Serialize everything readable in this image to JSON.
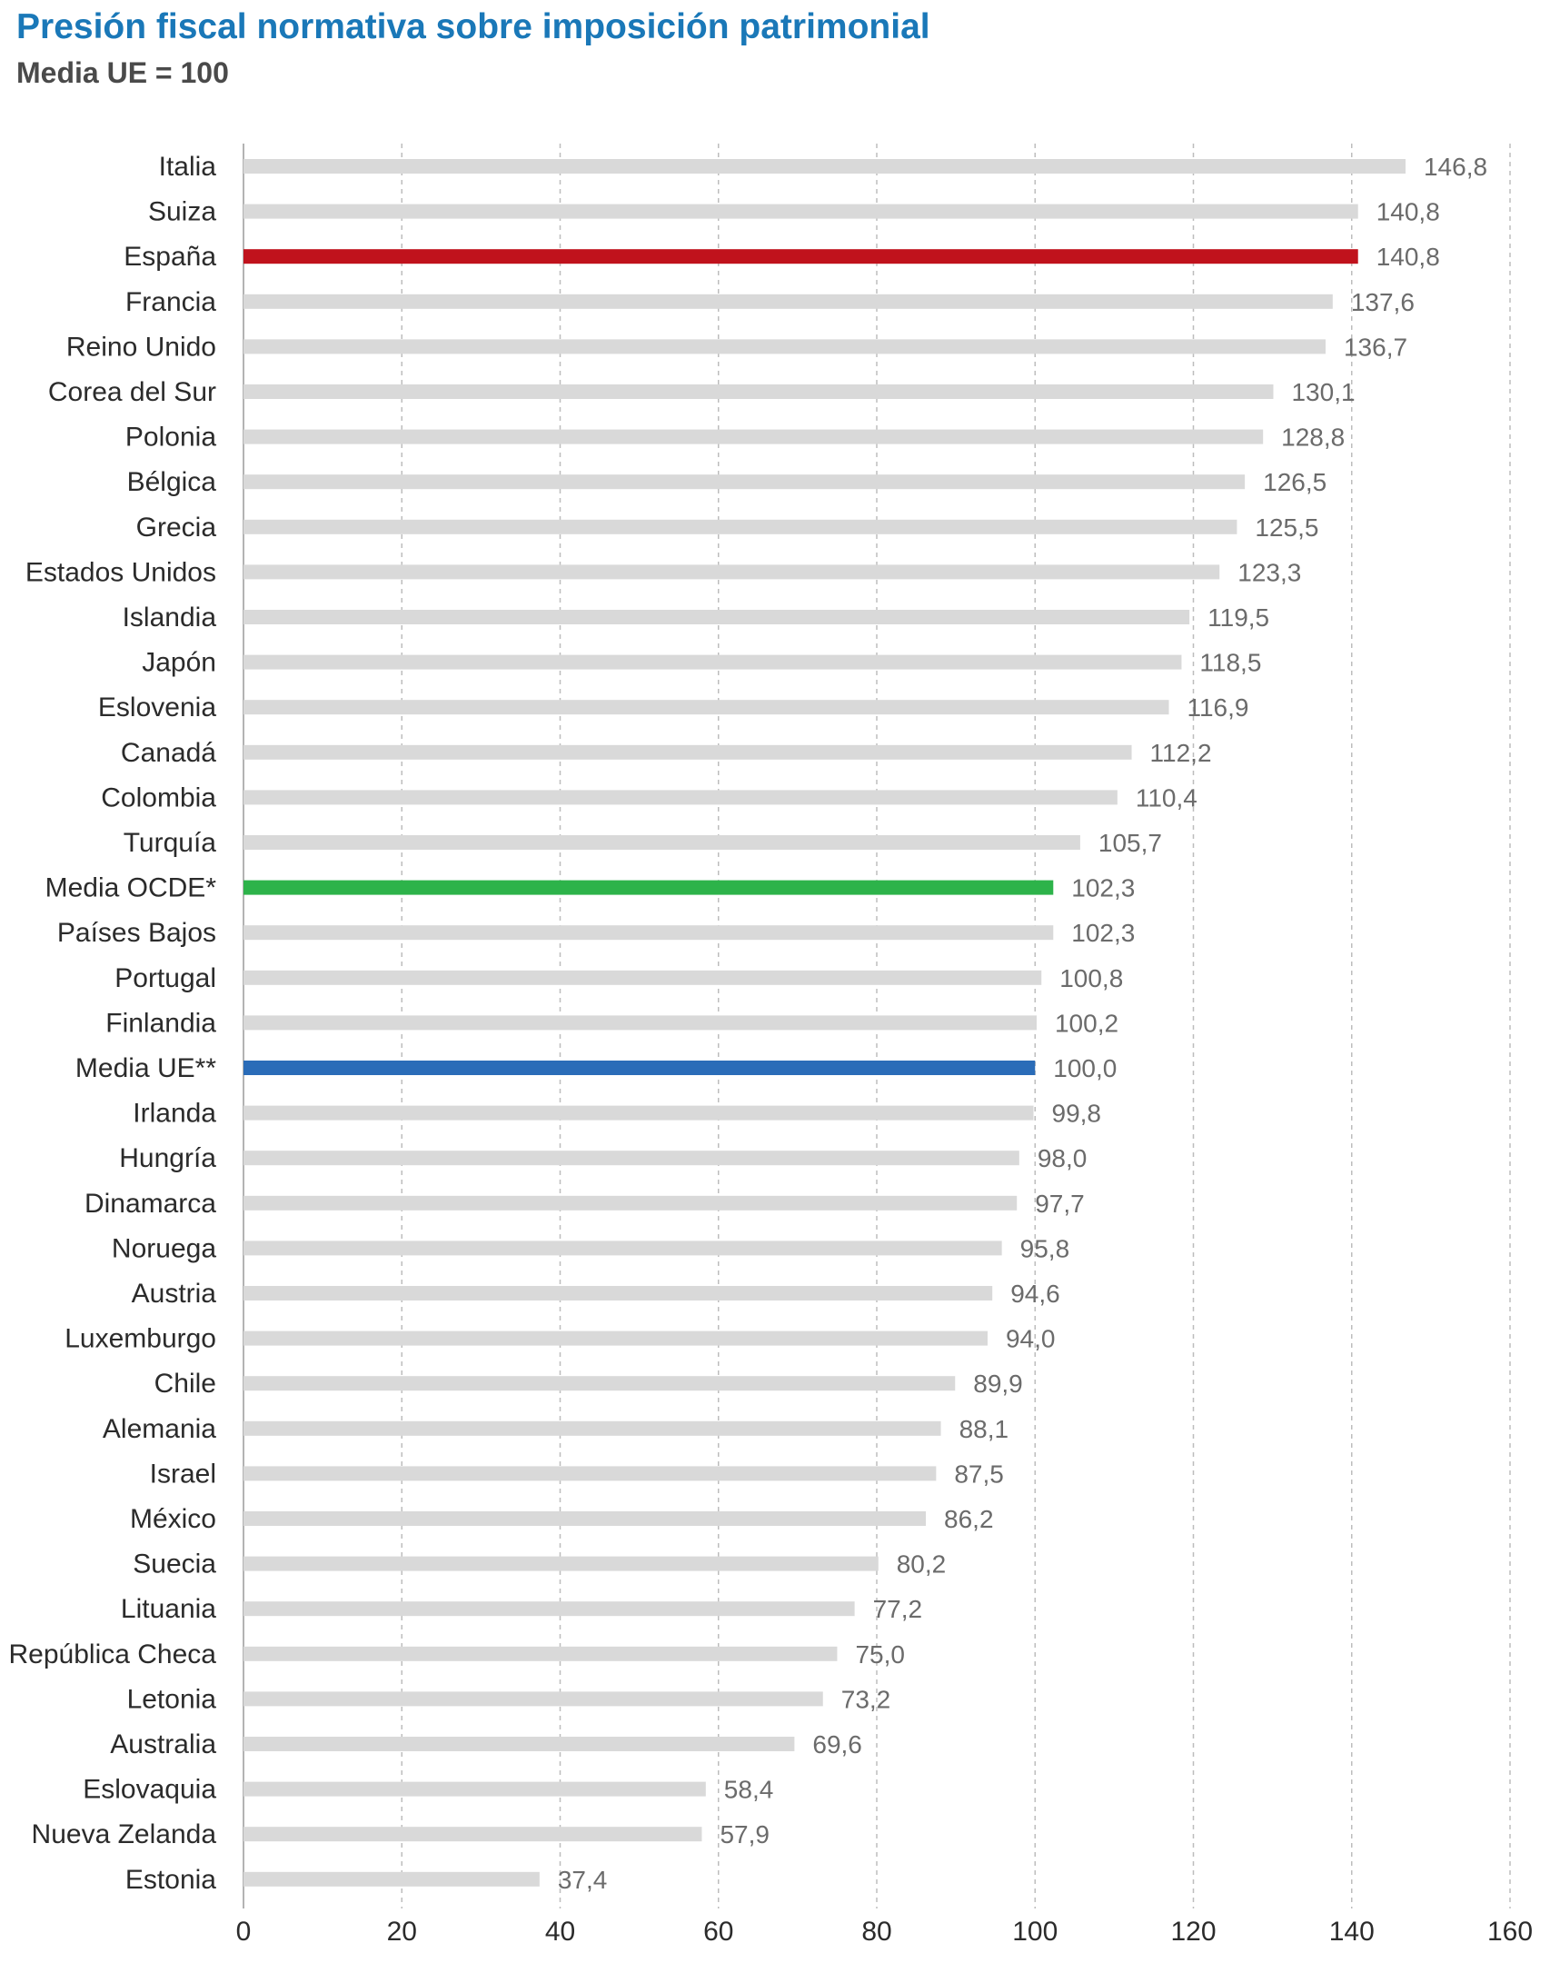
{
  "chart_data": {
    "type": "bar",
    "orientation": "horizontal",
    "title": "Presión fiscal normativa sobre imposición patrimonial",
    "subtitle": "Media UE = 100",
    "categories": [
      "Italia",
      "Suiza",
      "España",
      "Francia",
      "Reino Unido",
      "Corea del Sur",
      "Polonia",
      "Bélgica",
      "Grecia",
      "Estados  Unidos",
      "Islandia",
      "Japón",
      "Eslovenia",
      "Canadá",
      "Colombia",
      "Turquía",
      "Media OCDE*",
      "Países Bajos",
      "Portugal",
      "Finlandia",
      "Media UE**",
      "Irlanda",
      "Hungría",
      "Dinamarca",
      "Noruega",
      "Austria",
      "Luxemburgo",
      "Chile",
      "Alemania",
      "Israel",
      "México",
      "Suecia",
      "Lituania",
      "República Checa",
      "Letonia",
      "Australia",
      "Eslovaquia",
      "Nueva Zelanda",
      "Estonia"
    ],
    "values": [
      146.8,
      140.8,
      140.8,
      137.6,
      136.7,
      130.1,
      128.8,
      126.5,
      125.5,
      123.3,
      119.5,
      118.5,
      116.9,
      112.2,
      110.4,
      105.7,
      102.3,
      102.3,
      100.8,
      100.2,
      100.0,
      99.8,
      98.0,
      97.7,
      95.8,
      94.6,
      94.0,
      89.9,
      88.1,
      87.5,
      86.2,
      80.2,
      77.2,
      75.0,
      73.2,
      69.6,
      58.4,
      57.9,
      37.4
    ],
    "value_labels": [
      "146,8",
      "140,8",
      "140,8",
      "137,6",
      "136,7",
      "130,1",
      "128,8",
      "126,5",
      "125,5",
      "123,3",
      "119,5",
      "118,5",
      "116,9",
      "112,2",
      "110,4",
      "105,7",
      "102,3",
      "102,3",
      "100,8",
      "100,2",
      "100,0",
      "99,8",
      "98,0",
      "97,7",
      "95,8",
      "94,6",
      "94,0",
      "89,9",
      "88,1",
      "87,5",
      "86,2",
      "80,2",
      "77,2",
      "75,0",
      "73,2",
      "69,6",
      "58,4",
      "57,9",
      "37,4"
    ],
    "xlim": [
      0,
      160
    ],
    "xticks": [
      0,
      20,
      40,
      60,
      80,
      100,
      120,
      140,
      160
    ],
    "grid": "vertical dashed",
    "colors": {
      "default": "#d9d9d9",
      "España": "#c0121c",
      "Media OCDE*": "#2db34a",
      "Media UE**": "#2a6cb8"
    }
  }
}
